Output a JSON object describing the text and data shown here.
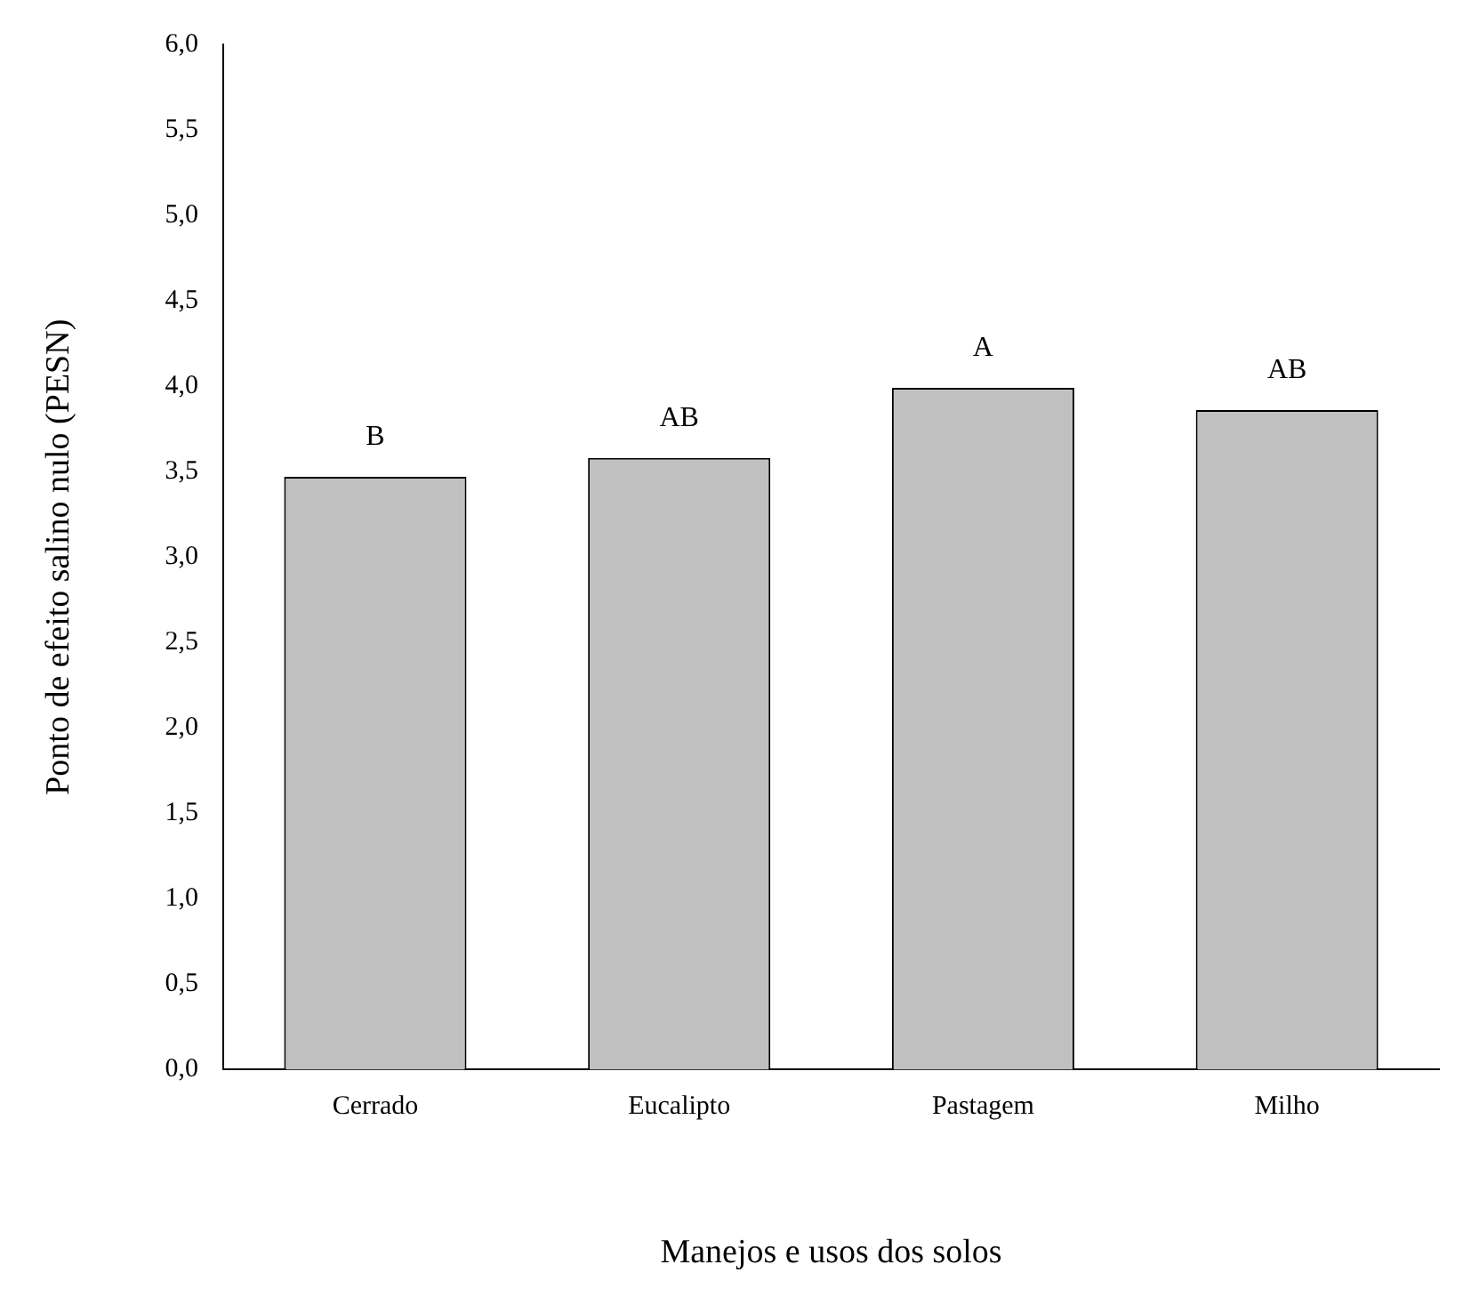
{
  "chart_data": {
    "type": "bar",
    "xlabel": "Manejos e usos dos solos",
    "ylabel": "Ponto de efeito salino nulo (PESN)",
    "categories": [
      "Cerrado",
      "Eucalipto",
      "Pastagem",
      "Milho"
    ],
    "values": [
      3.47,
      3.58,
      3.99,
      3.86
    ],
    "color": "#c0c0c0",
    "ylim": [
      0,
      6
    ],
    "yticks": [
      {
        "value": 0,
        "label": "0,0"
      },
      {
        "value": 0.5,
        "label": "0,5"
      },
      {
        "value": 1,
        "label": "1,0"
      },
      {
        "value": 1.5,
        "label": "1,5"
      },
      {
        "value": 2,
        "label": "2,0"
      },
      {
        "value": 2.5,
        "label": "2,5"
      },
      {
        "value": 3,
        "label": "3,0"
      },
      {
        "value": 3.5,
        "label": "3,5"
      },
      {
        "value": 4,
        "label": "4,0"
      },
      {
        "value": 4.5,
        "label": "4,5"
      },
      {
        "value": 5,
        "label": "5,0"
      },
      {
        "value": 5.5,
        "label": "5,5"
      },
      {
        "value": 6,
        "label": "6,0"
      }
    ],
    "grid": false,
    "legend": false,
    "annotations": [
      {
        "text": "B",
        "x": "Cerrado",
        "y": 3.47
      },
      {
        "text": "AB",
        "x": "Eucalipto",
        "y": 3.58
      },
      {
        "text": "A",
        "x": "Pastagem",
        "y": 3.99
      },
      {
        "text": "AB",
        "x": "Milho",
        "y": 3.86
      }
    ]
  }
}
